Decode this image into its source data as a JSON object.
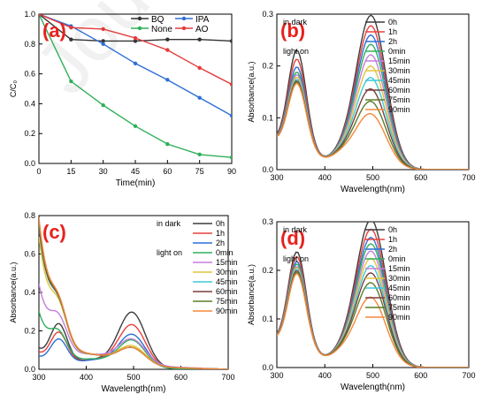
{
  "watermark": "Journal",
  "chart_data": [
    {
      "type": "line",
      "panel_label": "(a)",
      "title": "",
      "xlabel": "Time(min)",
      "ylabel": "C/C₀",
      "xlim": [
        0,
        90
      ],
      "ylim": [
        0,
        1.0
      ],
      "xticks": [
        0,
        15,
        30,
        45,
        60,
        75,
        90
      ],
      "yticks": [
        0,
        0.2,
        0.4,
        0.6,
        0.8,
        1.0
      ],
      "ytick_labels": [
        "0.0",
        "0.2",
        "0.4",
        "0.6",
        "0.8",
        "1.0"
      ],
      "legend_position": "top-right",
      "series": [
        {
          "name": "BQ",
          "color": "#333333",
          "x": [
            0,
            15,
            30,
            45,
            60,
            75,
            90
          ],
          "values": [
            1.0,
            0.83,
            0.82,
            0.82,
            0.83,
            0.83,
            0.82
          ]
        },
        {
          "name": "IPA",
          "color": "#2e6fd6",
          "x": [
            0,
            15,
            30,
            45,
            60,
            75,
            90
          ],
          "values": [
            1.0,
            0.92,
            0.8,
            0.67,
            0.56,
            0.44,
            0.32
          ]
        },
        {
          "name": "None",
          "color": "#2fb05a",
          "x": [
            0,
            15,
            30,
            45,
            60,
            75,
            90
          ],
          "values": [
            1.0,
            0.55,
            0.39,
            0.25,
            0.13,
            0.06,
            0.04
          ]
        },
        {
          "name": "AO",
          "color": "#e33a3a",
          "x": [
            0,
            15,
            30,
            45,
            60,
            75,
            90
          ],
          "values": [
            1.0,
            0.91,
            0.9,
            0.84,
            0.76,
            0.64,
            0.53
          ]
        }
      ]
    },
    {
      "type": "line",
      "panel_label": "(b)",
      "title": "",
      "xlabel": "Wavelength(nm)",
      "ylabel": "Absorbance(a.u.)",
      "xlim": [
        300,
        700
      ],
      "ylim": [
        0,
        0.3
      ],
      "xticks": [
        300,
        400,
        500,
        600,
        700
      ],
      "yticks": [
        0,
        0.1,
        0.2,
        0.3
      ],
      "ytick_labels": [
        "0.0",
        "0.1",
        "0.2",
        "0.3"
      ],
      "legend_position": "top-right",
      "legend_groups": [
        "in dark",
        "light on"
      ],
      "shape": {
        "p1_center": 342,
        "p1_width": 27,
        "p2_center": 497,
        "p2_width": 44,
        "floor_decay": 45
      },
      "series": [
        {
          "name": "0h",
          "color": "#3d3d3d",
          "peak1": 0.202,
          "peak2": 0.288
        },
        {
          "name": "1h",
          "color": "#e8413c",
          "peak1": 0.185,
          "peak2": 0.268
        },
        {
          "name": "2h",
          "color": "#2e6fd6",
          "peak1": 0.17,
          "peak2": 0.25
        },
        {
          "name": "0min",
          "color": "#2fb05a",
          "peak1": 0.16,
          "peak2": 0.232
        },
        {
          "name": "15min",
          "color": "#c77dde",
          "peak1": 0.155,
          "peak2": 0.212
        },
        {
          "name": "30min",
          "color": "#e0c63a",
          "peak1": 0.15,
          "peak2": 0.19
        },
        {
          "name": "45min",
          "color": "#3ec8d8",
          "peak1": 0.146,
          "peak2": 0.168
        },
        {
          "name": "60min",
          "color": "#7b3f3f",
          "peak1": 0.143,
          "peak2": 0.146
        },
        {
          "name": "75min",
          "color": "#5a7d2a",
          "peak1": 0.141,
          "peak2": 0.122
        },
        {
          "name": "90min",
          "color": "#f5873a",
          "peak1": 0.138,
          "peak2": 0.098
        }
      ]
    },
    {
      "type": "line",
      "panel_label": "(c)",
      "title": "",
      "xlabel": "Wavelength(nm)",
      "ylabel": "Absorbance(a.u.)",
      "xlim": [
        300,
        700
      ],
      "ylim": [
        0,
        0.8
      ],
      "xticks": [
        300,
        400,
        500,
        600,
        700
      ],
      "yticks": [
        0,
        0.2,
        0.4,
        0.6,
        0.8
      ],
      "ytick_labels": [
        "0.0",
        "0.2",
        "0.4",
        "0.6",
        "0.8"
      ],
      "legend_position": "top-right",
      "legend_groups": [
        "in dark",
        "light on"
      ],
      "shape": {
        "p1_center": 342,
        "p1_width": 25,
        "p2_center": 497,
        "p2_width": 40,
        "floor_decay": 30
      },
      "series": [
        {
          "name": "0h",
          "color": "#3d3d3d",
          "start": 0.15,
          "peak1": 0.2,
          "peak2": 0.285,
          "tail": 0.01
        },
        {
          "name": "1h",
          "color": "#e8413c",
          "start": 0.12,
          "peak1": 0.16,
          "peak2": 0.22,
          "tail": 0.01
        },
        {
          "name": "2h",
          "color": "#2e6fd6",
          "start": 0.09,
          "peak1": 0.13,
          "peak2": 0.17,
          "tail": 0.01
        },
        {
          "name": "0min",
          "color": "#2fb05a",
          "start": 0.32,
          "peak1": 0.12,
          "peak2": 0.14,
          "tail": 0.01
        },
        {
          "name": "15min",
          "color": "#c77dde",
          "start": 0.44,
          "peak1": 0.15,
          "peak2": 0.13,
          "tail": 0.04
        },
        {
          "name": "30min",
          "color": "#e0c63a",
          "start": 0.7,
          "peak1": 0.17,
          "peak2": 0.1,
          "tail": 0.03
        },
        {
          "name": "45min",
          "color": "#3ec8d8",
          "start": 0.75,
          "peak1": 0.17,
          "peak2": 0.09,
          "tail": 0.03
        },
        {
          "name": "60min",
          "color": "#7b3f3f",
          "start": 0.76,
          "peak1": 0.17,
          "peak2": 0.09,
          "tail": 0.03
        },
        {
          "name": "75min",
          "color": "#5a7d2a",
          "start": 0.78,
          "peak1": 0.17,
          "peak2": 0.09,
          "tail": 0.03
        },
        {
          "name": "90min",
          "color": "#f5873a",
          "start": 0.8,
          "peak1": 0.17,
          "peak2": 0.09,
          "tail": 0.03
        }
      ]
    },
    {
      "type": "line",
      "panel_label": "(d)",
      "title": "",
      "xlabel": "Wavelength(nm)",
      "ylabel": "Absorbance(a.u.)",
      "xlim": [
        300,
        700
      ],
      "ylim": [
        0,
        0.3
      ],
      "xticks": [
        300,
        400,
        500,
        600,
        700
      ],
      "yticks": [
        0,
        0.1,
        0.2,
        0.3
      ],
      "ytick_labels": [
        "0.0",
        "0.1",
        "0.2",
        "0.3"
      ],
      "legend_position": "top-right",
      "legend_groups": [
        "in dark",
        "light on"
      ],
      "shape": {
        "p1_center": 342,
        "p1_width": 27,
        "p2_center": 497,
        "p2_width": 44,
        "floor_decay": 45
      },
      "series": [
        {
          "name": "0h",
          "color": "#3d3d3d",
          "peak1": 0.21,
          "peak2": 0.295
        },
        {
          "name": "1h",
          "color": "#e8413c",
          "peak1": 0.2,
          "peak2": 0.275
        },
        {
          "name": "2h",
          "color": "#2e6fd6",
          "peak1": 0.19,
          "peak2": 0.258
        },
        {
          "name": "0min",
          "color": "#2fb05a",
          "peak1": 0.185,
          "peak2": 0.245
        },
        {
          "name": "15min",
          "color": "#c77dde",
          "peak1": 0.18,
          "peak2": 0.23
        },
        {
          "name": "30min",
          "color": "#e0c63a",
          "peak1": 0.177,
          "peak2": 0.215
        },
        {
          "name": "45min",
          "color": "#3ec8d8",
          "peak1": 0.174,
          "peak2": 0.2
        },
        {
          "name": "60min",
          "color": "#7b3f3f",
          "peak1": 0.171,
          "peak2": 0.185
        },
        {
          "name": "75min",
          "color": "#5a7d2a",
          "peak1": 0.168,
          "peak2": 0.165
        },
        {
          "name": "90min",
          "color": "#f5873a",
          "peak1": 0.165,
          "peak2": 0.135
        }
      ]
    }
  ]
}
